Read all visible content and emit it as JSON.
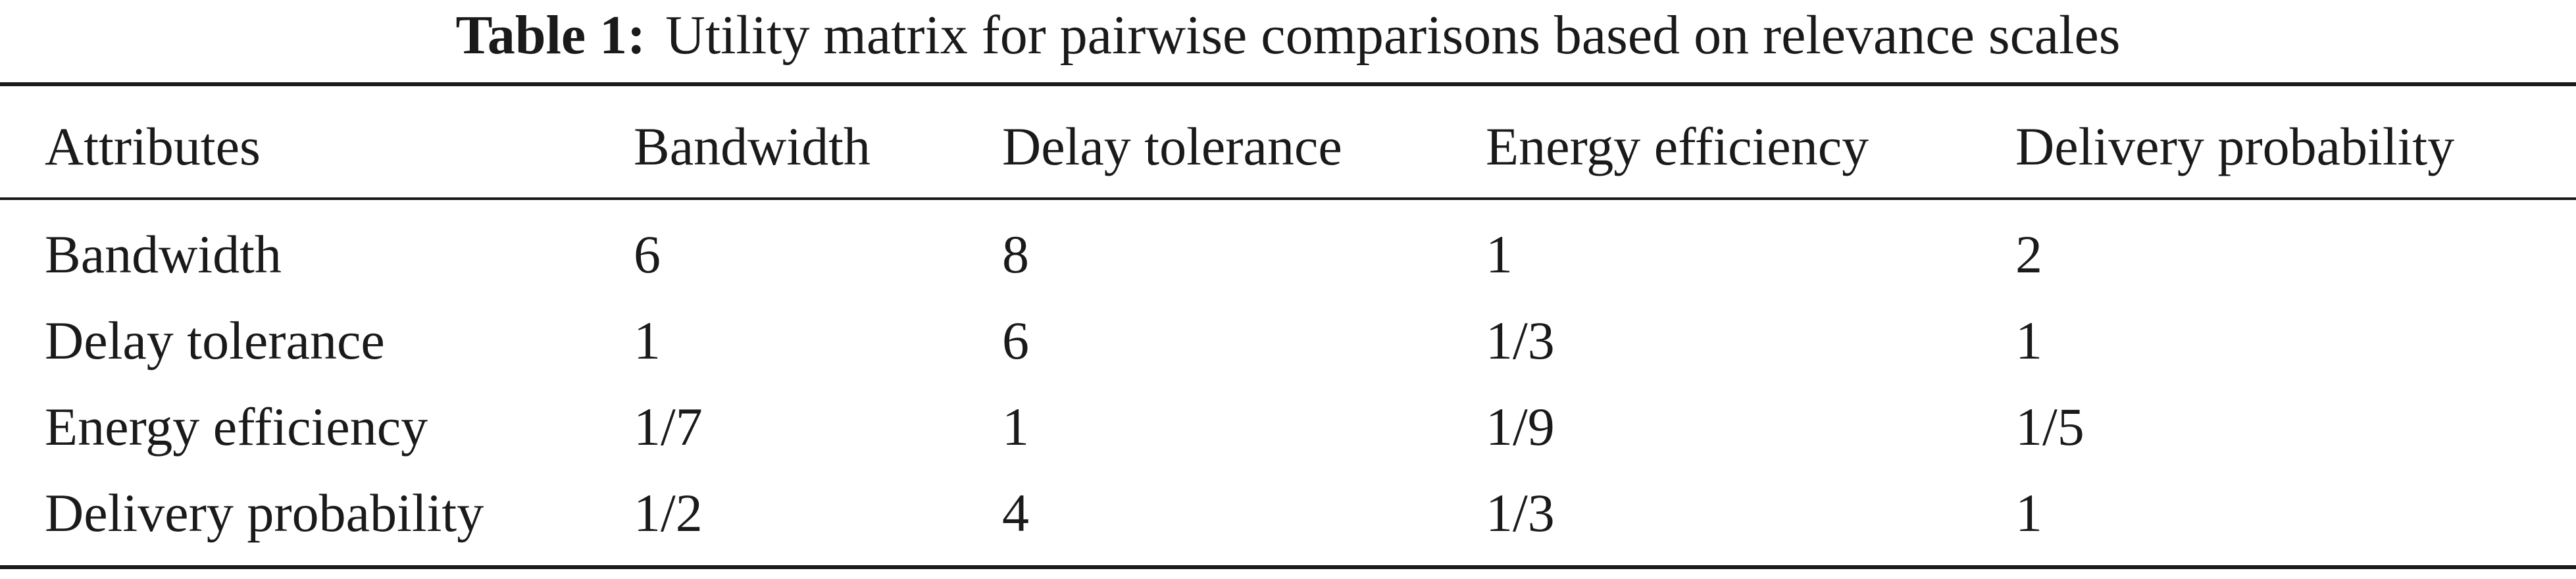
{
  "table": {
    "caption_label": "Table 1:",
    "caption_text": "Utility matrix for pairwise comparisons based on relevance scales",
    "headers": [
      "Attributes",
      "Bandwidth",
      "Delay tolerance",
      "Energy efficiency",
      "Delivery probability"
    ],
    "rows": [
      [
        "Bandwidth",
        "6",
        "8",
        "1",
        "2"
      ],
      [
        "Delay tolerance",
        "1",
        "6",
        "1/3",
        "1"
      ],
      [
        "Energy efficiency",
        "1/7",
        "1",
        "1/9",
        "1/5"
      ],
      [
        "Delivery probability",
        "1/2",
        "4",
        "1/3",
        "1"
      ]
    ]
  }
}
